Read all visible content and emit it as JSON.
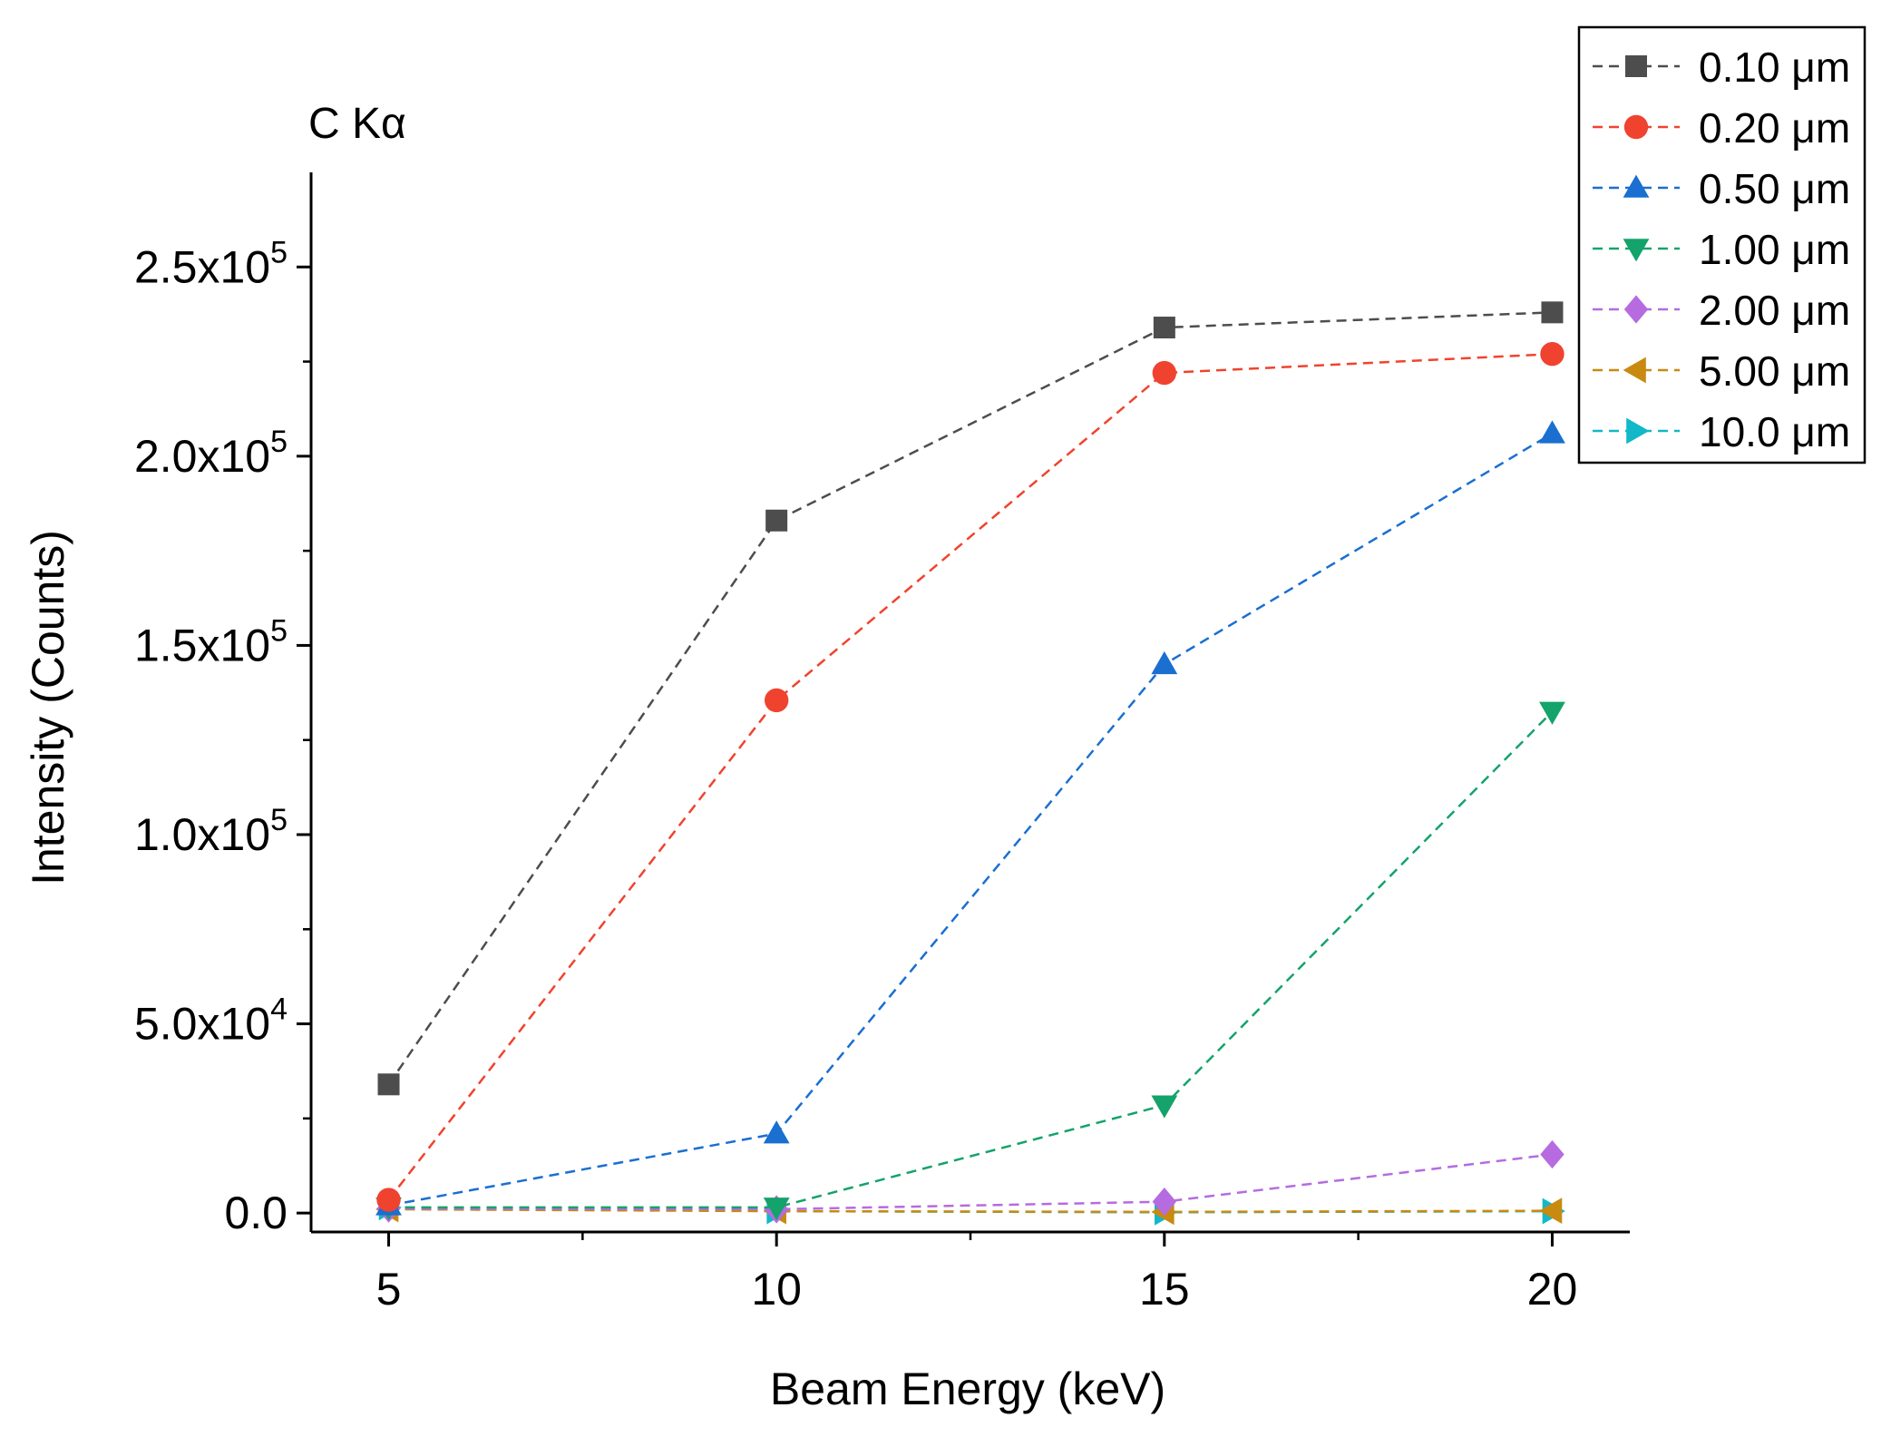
{
  "chart_data": {
    "type": "line",
    "panel_label": "C Kα",
    "title": "",
    "xlabel": "Beam Energy (keV)",
    "ylabel": "Intensity (Counts)",
    "xlim": [
      4,
      21
    ],
    "ylim": [
      -5000,
      275000
    ],
    "x_ticks": [
      {
        "value": 5,
        "label": "5"
      },
      {
        "value": 10,
        "label": "10"
      },
      {
        "value": 15,
        "label": "15"
      },
      {
        "value": 20,
        "label": "20"
      }
    ],
    "y_ticks": [
      {
        "value": 0,
        "mantissa": "0.0",
        "times": "",
        "exponent": ""
      },
      {
        "value": 50000,
        "mantissa": "5.0",
        "times": "x10",
        "exponent": "4"
      },
      {
        "value": 100000,
        "mantissa": "1.0",
        "times": "x10",
        "exponent": "5"
      },
      {
        "value": 150000,
        "mantissa": "1.5",
        "times": "x10",
        "exponent": "5"
      },
      {
        "value": 200000,
        "mantissa": "2.0",
        "times": "x10",
        "exponent": "5"
      },
      {
        "value": 250000,
        "mantissa": "2.5",
        "times": "x10",
        "exponent": "5"
      }
    ],
    "x_minor_ticks": [
      7.5,
      12.5,
      17.5
    ],
    "y_minor_ticks": [
      25000,
      75000,
      125000,
      175000,
      225000
    ],
    "grid": false,
    "legend_position": "top-right",
    "x": [
      5,
      10,
      15,
      20
    ],
    "series": [
      {
        "name": "0.10 μm",
        "color": "#4d4d4d",
        "marker": "square",
        "values": [
          34000,
          183000,
          234000,
          238000
        ]
      },
      {
        "name": "0.20 μm",
        "color": "#f0432f",
        "marker": "circle",
        "values": [
          3500,
          135500,
          222000,
          227000
        ]
      },
      {
        "name": "0.50 μm",
        "color": "#1a6fd0",
        "marker": "triangle-up",
        "values": [
          2000,
          21000,
          145000,
          206000
        ]
      },
      {
        "name": "1.00 μm",
        "color": "#14a36a",
        "marker": "triangle-down",
        "values": [
          1500,
          1500,
          28500,
          132500
        ]
      },
      {
        "name": "2.00 μm",
        "color": "#b66be0",
        "marker": "diamond",
        "values": [
          1200,
          1000,
          3000,
          15500
        ]
      },
      {
        "name": "5.00 μm",
        "color": "#c88a10",
        "marker": "triangle-left",
        "values": [
          1000,
          500,
          300,
          600
        ]
      },
      {
        "name": "10.0 μm",
        "color": "#12b8c8",
        "marker": "triangle-right",
        "values": [
          1500,
          500,
          200,
          500
        ]
      }
    ]
  }
}
